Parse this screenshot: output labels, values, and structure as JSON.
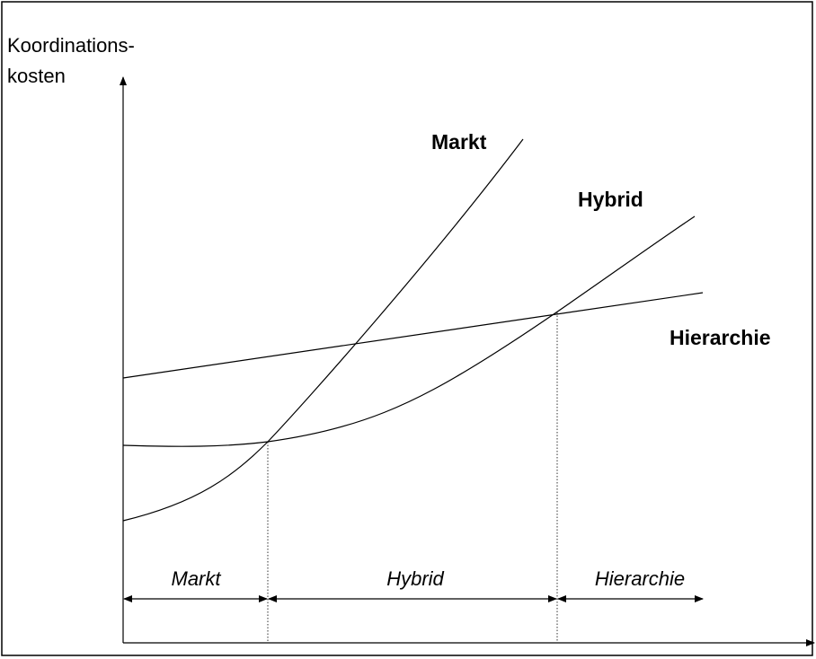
{
  "axis_label": [
    "Koordinations-",
    "kosten"
  ],
  "curves": [
    {
      "label": "Markt"
    },
    {
      "label": "Hybrid"
    },
    {
      "label": "Hierarchie"
    }
  ],
  "regions": [
    {
      "label": "Markt"
    },
    {
      "label": "Hybrid"
    },
    {
      "label": "Hierarchie"
    }
  ]
}
